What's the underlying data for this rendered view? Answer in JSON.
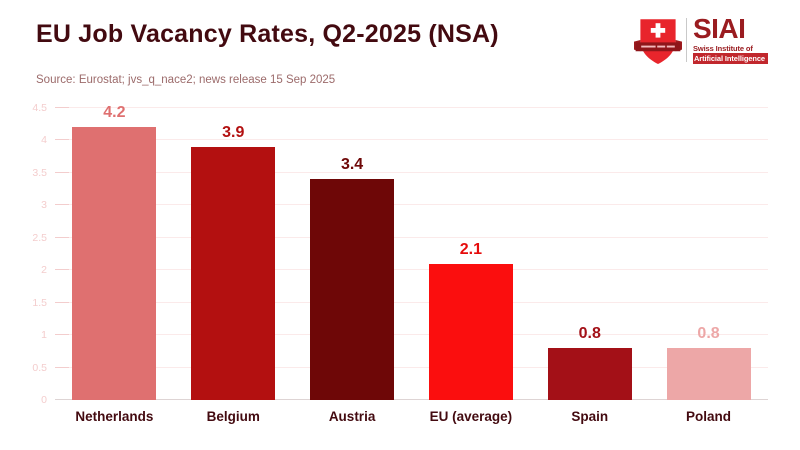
{
  "header": {
    "title": "EU Job Vacancy Rates, Q2-2025 (NSA)",
    "source": "Source: Eurostat; jvs_q_nace2; news release 15 Sep 2025"
  },
  "logo": {
    "acronym": "SIAI",
    "subtitle_line1": "Swiss Institute of",
    "subtitle_line2": "Artificial Intelligence",
    "shield_color": "#e8252c",
    "banner_color": "#8f161a",
    "text_color": "#9a1c20",
    "badge_bg": "#c1272d"
  },
  "chart_data": {
    "type": "bar",
    "categories": [
      "Netherlands",
      "Belgium",
      "Austria",
      "EU (average)",
      "Spain",
      "Poland"
    ],
    "values": [
      4.2,
      3.9,
      3.4,
      2.1,
      0.8,
      0.8
    ],
    "bar_colors": [
      "#df7070",
      "#b31010",
      "#6e0707",
      "#fb0e0e",
      "#a31017",
      "#eda7a7"
    ],
    "value_label_colors": [
      "#df7070",
      "#b31010",
      "#6e0707",
      "#e60c0c",
      "#a31017",
      "#eda7a7"
    ],
    "title": "",
    "xlabel": "",
    "ylabel": "",
    "ylim": [
      0,
      4.5
    ],
    "yticks": [
      0,
      0.5,
      1,
      1.5,
      2,
      2.5,
      3,
      3.5,
      4,
      4.5
    ],
    "grid": true,
    "legend": false,
    "value_labels_decimals": 1,
    "gridline_color": "#fbeaea",
    "tick_label_color": "#f4cdcd",
    "category_label_color": "#430a10"
  }
}
